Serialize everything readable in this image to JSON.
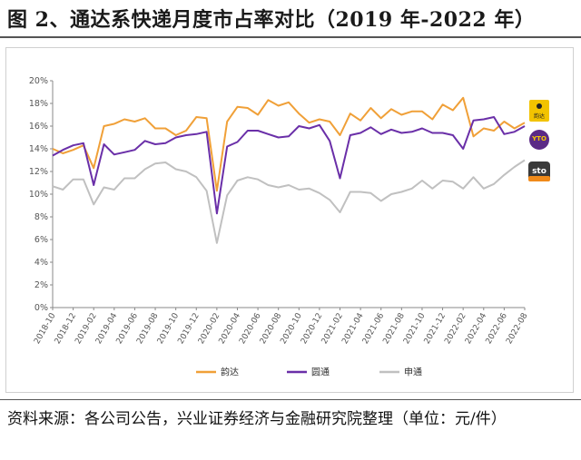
{
  "figure": {
    "title": "图 2、通达系快递月度市占率对比（2019 年-2022 年）",
    "source": "资料来源：各公司公告，兴业证券经济与金融研究院整理（单位：元/件）"
  },
  "logos": [
    {
      "icon": "yunda-logo-icon",
      "text": "韵达",
      "color": "#f2c300"
    },
    {
      "icon": "yto-logo-icon",
      "text": "YTO",
      "color": "#5b2a86"
    },
    {
      "icon": "sto-logo-icon",
      "text": "sto",
      "color": "#f08a1a"
    }
  ],
  "chart_data": {
    "type": "line",
    "ylim": [
      0,
      20
    ],
    "yticks": [
      "0%",
      "2%",
      "4%",
      "6%",
      "8%",
      "10%",
      "12%",
      "14%",
      "16%",
      "18%",
      "20%"
    ],
    "xtick_labels": [
      "2018-10",
      "2018-12",
      "2019-02",
      "2019-04",
      "2019-06",
      "2019-08",
      "2019-10",
      "2019-12",
      "2020-02",
      "2020-04",
      "2020-06",
      "2020-08",
      "2020-10",
      "2020-12",
      "2021-02",
      "2021-04",
      "2021-06",
      "2021-08",
      "2021-10",
      "2021-12",
      "2022-02",
      "2022-04",
      "2022-06",
      "2022-08"
    ],
    "x": [
      "2018-10",
      "2018-11",
      "2018-12",
      "2019-01",
      "2019-02",
      "2019-03",
      "2019-04",
      "2019-05",
      "2019-06",
      "2019-07",
      "2019-08",
      "2019-09",
      "2019-10",
      "2019-11",
      "2019-12",
      "2020-01",
      "2020-02",
      "2020-03",
      "2020-04",
      "2020-05",
      "2020-06",
      "2020-07",
      "2020-08",
      "2020-09",
      "2020-10",
      "2020-11",
      "2020-12",
      "2021-01",
      "2021-02",
      "2021-03",
      "2021-04",
      "2021-05",
      "2021-06",
      "2021-07",
      "2021-08",
      "2021-09",
      "2021-10",
      "2021-11",
      "2021-12",
      "2022-01",
      "2022-02",
      "2022-03",
      "2022-04",
      "2022-05",
      "2022-06",
      "2022-07",
      "2022-08"
    ],
    "series": [
      {
        "name": "韵达",
        "color": "#f0a038",
        "values": [
          14.0,
          13.6,
          13.9,
          14.3,
          12.3,
          16.0,
          16.2,
          16.6,
          16.4,
          16.7,
          15.8,
          15.8,
          15.2,
          15.6,
          16.8,
          16.7,
          10.3,
          16.4,
          17.7,
          17.6,
          17.0,
          18.3,
          17.8,
          18.1,
          17.1,
          16.3,
          16.6,
          16.4,
          15.2,
          17.1,
          16.5,
          17.6,
          16.7,
          17.5,
          17.0,
          17.3,
          17.3,
          16.6,
          17.9,
          17.4,
          18.5,
          15.1,
          15.8,
          15.6,
          16.4,
          15.8,
          16.3
        ]
      },
      {
        "name": "圆通",
        "color": "#6a2fa8",
        "values": [
          13.4,
          13.9,
          14.3,
          14.5,
          10.8,
          14.4,
          13.5,
          13.7,
          13.9,
          14.7,
          14.4,
          14.5,
          15.0,
          15.2,
          15.3,
          15.5,
          8.3,
          14.2,
          14.6,
          15.6,
          15.6,
          15.3,
          15.0,
          15.1,
          16.0,
          15.8,
          16.1,
          14.7,
          11.4,
          15.2,
          15.4,
          15.9,
          15.3,
          15.7,
          15.4,
          15.5,
          15.8,
          15.4,
          15.4,
          15.2,
          14.0,
          16.5,
          16.6,
          16.8,
          15.3,
          15.5,
          16.0
        ]
      },
      {
        "name": "申通",
        "color": "#c0c0c0",
        "values": [
          10.7,
          10.4,
          11.3,
          11.3,
          9.1,
          10.6,
          10.4,
          11.4,
          11.4,
          12.2,
          12.7,
          12.8,
          12.2,
          12.0,
          11.5,
          10.3,
          5.7,
          9.9,
          11.2,
          11.5,
          11.3,
          10.8,
          10.6,
          10.8,
          10.4,
          10.5,
          10.1,
          9.5,
          8.4,
          10.2,
          10.2,
          10.1,
          9.4,
          10.0,
          10.2,
          10.5,
          11.2,
          10.5,
          11.2,
          11.1,
          10.5,
          11.5,
          10.5,
          10.9,
          11.7,
          12.4,
          13.0
        ]
      }
    ],
    "legend_position": "bottom",
    "grid": false
  }
}
